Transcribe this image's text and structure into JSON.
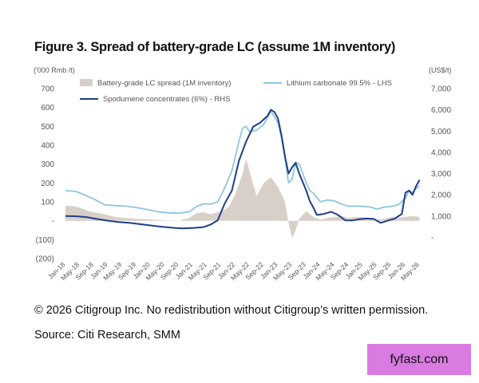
{
  "figure": {
    "title": "Figure 3. Spread of battery-grade LC (assume 1M inventory)",
    "copyright": "© 2026 Citigroup Inc. No redistribution without Citigroup’s written permission.",
    "source": "Source: Citi Research, SMM",
    "badge": "fyfast.com"
  },
  "chart_data": {
    "type": "line",
    "left_axis_unit": "('000 Rmb /t)",
    "right_axis_unit": "(US$/t)",
    "left_ticks": [
      "700",
      "600",
      "500",
      "400",
      "300",
      "200",
      "100",
      "-",
      "(100)",
      "(200)"
    ],
    "left_values": [
      700,
      600,
      500,
      400,
      300,
      200,
      100,
      0,
      -100,
      -200
    ],
    "right_ticks": [
      "7,000",
      "6,000",
      "5,000",
      "4,000",
      "3,000",
      "2,000",
      "1,000",
      "-"
    ],
    "right_values": [
      7000,
      6000,
      5000,
      4000,
      3000,
      2000,
      1000,
      0
    ],
    "ylim_left": [
      -200,
      700
    ],
    "ylim_right": [
      -1000,
      7000
    ],
    "x_labels": [
      "Jan-18",
      "May-18",
      "Sep-18",
      "Jan-19",
      "May-19",
      "Sep-19",
      "Jan-20",
      "May-20",
      "Sep-20",
      "Jan-21",
      "May-21",
      "Sep-21",
      "Jan-22",
      "May-22",
      "Sep-22",
      "Jan-23",
      "May-23",
      "Sep-23",
      "Jan-24",
      "May-24",
      "Sep-24",
      "Jan-25",
      "May-25",
      "Sep-25",
      "Jan-26",
      "May-26"
    ],
    "x_range": [
      "2018-01",
      "2026-06"
    ],
    "legend_position": "top",
    "series": [
      {
        "name": "Battery-grade LC spread (1M inventory)",
        "kind": "area",
        "axis": "left",
        "color": "#d8d0c8",
        "points": [
          [
            "2018-01",
            80
          ],
          [
            "2018-03",
            78
          ],
          [
            "2018-05",
            70
          ],
          [
            "2018-07",
            55
          ],
          [
            "2018-09",
            45
          ],
          [
            "2018-12",
            35
          ],
          [
            "2019-03",
            20
          ],
          [
            "2019-06",
            15
          ],
          [
            "2019-09",
            10
          ],
          [
            "2019-12",
            8
          ],
          [
            "2020-03",
            5
          ],
          [
            "2020-06",
            2
          ],
          [
            "2020-09",
            0
          ],
          [
            "2020-12",
            15
          ],
          [
            "2021-02",
            40
          ],
          [
            "2021-04",
            45
          ],
          [
            "2021-06",
            35
          ],
          [
            "2021-09",
            50
          ],
          [
            "2021-11",
            70
          ],
          [
            "2022-01",
            140
          ],
          [
            "2022-03",
            250
          ],
          [
            "2022-04",
            330
          ],
          [
            "2022-05",
            260
          ],
          [
            "2022-07",
            130
          ],
          [
            "2022-09",
            200
          ],
          [
            "2022-11",
            230
          ],
          [
            "2023-01",
            180
          ],
          [
            "2023-03",
            100
          ],
          [
            "2023-04",
            -10
          ],
          [
            "2023-05",
            -90
          ],
          [
            "2023-06",
            -50
          ],
          [
            "2023-07",
            10
          ],
          [
            "2023-09",
            50
          ],
          [
            "2023-11",
            20
          ],
          [
            "2024-01",
            5
          ],
          [
            "2024-03",
            15
          ],
          [
            "2024-05",
            20
          ],
          [
            "2024-07",
            25
          ],
          [
            "2024-09",
            15
          ],
          [
            "2024-11",
            20
          ],
          [
            "2025-01",
            20
          ],
          [
            "2025-03",
            10
          ],
          [
            "2025-05",
            5
          ],
          [
            "2025-07",
            10
          ],
          [
            "2025-09",
            20
          ],
          [
            "2025-11",
            15
          ],
          [
            "2026-01",
            20
          ],
          [
            "2026-03",
            25
          ],
          [
            "2026-05",
            20
          ]
        ]
      },
      {
        "name": "Lithium carbonate 99.5% - LHS",
        "kind": "line",
        "axis": "left",
        "color": "#8ec6df",
        "points": [
          [
            "2018-01",
            160
          ],
          [
            "2018-04",
            155
          ],
          [
            "2018-06",
            140
          ],
          [
            "2018-09",
            115
          ],
          [
            "2018-12",
            85
          ],
          [
            "2019-03",
            80
          ],
          [
            "2019-06",
            77
          ],
          [
            "2019-09",
            70
          ],
          [
            "2019-12",
            60
          ],
          [
            "2020-03",
            48
          ],
          [
            "2020-06",
            42
          ],
          [
            "2020-09",
            40
          ],
          [
            "2020-12",
            48
          ],
          [
            "2021-02",
            75
          ],
          [
            "2021-04",
            90
          ],
          [
            "2021-06",
            88
          ],
          [
            "2021-08",
            100
          ],
          [
            "2021-10",
            175
          ],
          [
            "2021-12",
            265
          ],
          [
            "2022-02",
            420
          ],
          [
            "2022-03",
            490
          ],
          [
            "2022-04",
            500
          ],
          [
            "2022-05",
            470
          ],
          [
            "2022-07",
            480
          ],
          [
            "2022-09",
            510
          ],
          [
            "2022-11",
            580
          ],
          [
            "2023-01",
            520
          ],
          [
            "2023-02",
            440
          ],
          [
            "2023-03",
            330
          ],
          [
            "2023-04",
            200
          ],
          [
            "2023-05",
            220
          ],
          [
            "2023-06",
            310
          ],
          [
            "2023-07",
            300
          ],
          [
            "2023-08",
            250
          ],
          [
            "2023-09",
            200
          ],
          [
            "2023-10",
            160
          ],
          [
            "2023-11",
            145
          ],
          [
            "2024-01",
            100
          ],
          [
            "2024-03",
            110
          ],
          [
            "2024-05",
            105
          ],
          [
            "2024-07",
            88
          ],
          [
            "2024-09",
            76
          ],
          [
            "2024-11",
            78
          ],
          [
            "2025-01",
            76
          ],
          [
            "2025-03",
            73
          ],
          [
            "2025-05",
            62
          ],
          [
            "2025-07",
            72
          ],
          [
            "2025-09",
            76
          ],
          [
            "2025-11",
            85
          ],
          [
            "2026-01",
            120
          ],
          [
            "2026-02",
            160
          ],
          [
            "2026-03",
            150
          ],
          [
            "2026-04",
            170
          ],
          [
            "2026-05",
            185
          ]
        ]
      },
      {
        "name": "Spodumene concentrates (6%) - RHS",
        "kind": "line",
        "axis": "right",
        "color": "#1f3d8a",
        "points": [
          [
            "2018-01",
            1000
          ],
          [
            "2018-04",
            990
          ],
          [
            "2018-07",
            950
          ],
          [
            "2018-10",
            860
          ],
          [
            "2019-01",
            780
          ],
          [
            "2019-04",
            720
          ],
          [
            "2019-07",
            680
          ],
          [
            "2019-10",
            620
          ],
          [
            "2020-01",
            560
          ],
          [
            "2020-04",
            500
          ],
          [
            "2020-07",
            450
          ],
          [
            "2020-10",
            420
          ],
          [
            "2021-01",
            440
          ],
          [
            "2021-04",
            480
          ],
          [
            "2021-06",
            600
          ],
          [
            "2021-08",
            800
          ],
          [
            "2021-10",
            1600
          ],
          [
            "2021-12",
            2200
          ],
          [
            "2022-02",
            3600
          ],
          [
            "2022-04",
            4500
          ],
          [
            "2022-06",
            5200
          ],
          [
            "2022-08",
            5400
          ],
          [
            "2022-10",
            5700
          ],
          [
            "2022-11",
            6000
          ],
          [
            "2022-12",
            5900
          ],
          [
            "2023-01",
            5600
          ],
          [
            "2023-02",
            4800
          ],
          [
            "2023-03",
            3800
          ],
          [
            "2023-04",
            3000
          ],
          [
            "2023-05",
            3300
          ],
          [
            "2023-06",
            3500
          ],
          [
            "2023-07",
            3000
          ],
          [
            "2023-08",
            2600
          ],
          [
            "2023-09",
            2200
          ],
          [
            "2023-10",
            1700
          ],
          [
            "2023-11",
            1400
          ],
          [
            "2023-12",
            1050
          ],
          [
            "2024-02",
            1100
          ],
          [
            "2024-04",
            1200
          ],
          [
            "2024-06",
            1050
          ],
          [
            "2024-08",
            800
          ],
          [
            "2024-10",
            790
          ],
          [
            "2024-12",
            850
          ],
          [
            "2025-02",
            880
          ],
          [
            "2025-04",
            870
          ],
          [
            "2025-06",
            680
          ],
          [
            "2025-08",
            780
          ],
          [
            "2025-10",
            880
          ],
          [
            "2025-12",
            1100
          ],
          [
            "2026-01",
            2100
          ],
          [
            "2026-02",
            2200
          ],
          [
            "2026-03",
            2000
          ],
          [
            "2026-04",
            2400
          ],
          [
            "2026-05",
            2700
          ]
        ]
      }
    ]
  }
}
